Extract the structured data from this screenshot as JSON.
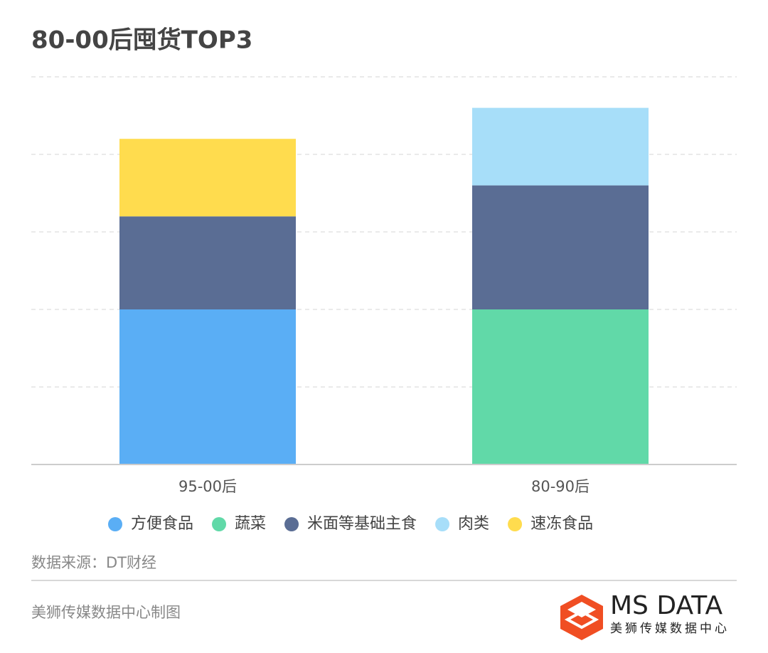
{
  "chart_data": {
    "type": "stacked_bar",
    "title": "80-00后囤货TOP3",
    "categories": [
      "95-00后",
      "80-90后"
    ],
    "series": [
      {
        "name": "方便食品",
        "color": "#5aaef5",
        "values": [
          2,
          null
        ]
      },
      {
        "name": "蔬菜",
        "color": "#61d9a8",
        "values": [
          null,
          2
        ]
      },
      {
        "name": "米面等基础主食",
        "color": "#5a6d94",
        "values": [
          1.2,
          1.6
        ]
      },
      {
        "name": "肉类",
        "color": "#a7def9",
        "values": [
          null,
          1.0
        ]
      },
      {
        "name": "速冻食品",
        "color": "#ffdc4e",
        "values": [
          1.0,
          null
        ]
      }
    ],
    "ylim": [
      0,
      5
    ],
    "yticks": [
      0,
      1,
      2,
      3,
      4,
      5
    ],
    "grid": true,
    "legend": "bottom"
  },
  "source": "数据来源：DT财经",
  "footer": "美狮传媒数据中心制图",
  "logo": {
    "name": "MS DATA",
    "tagline": "美狮传媒数据中心"
  }
}
